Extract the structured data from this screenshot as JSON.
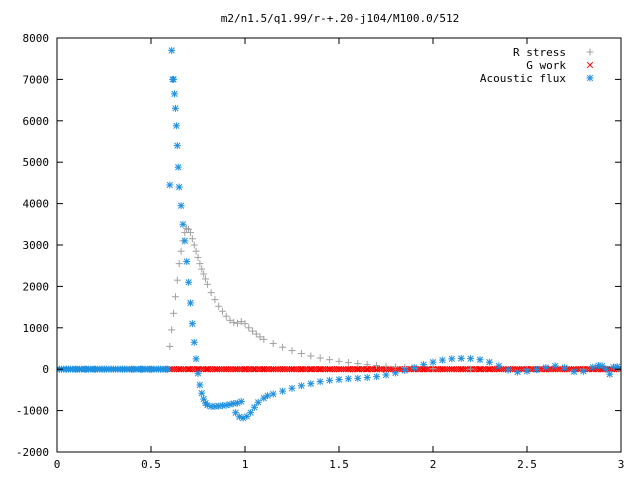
{
  "chart_data": {
    "type": "scatter",
    "title": "m2/n1.5/q1.99/r-+.20-j104/M100.0/512",
    "xlabel": "",
    "ylabel": "",
    "xlim": [
      0,
      3
    ],
    "ylim": [
      -2000,
      8000
    ],
    "x_ticks": [
      0,
      0.5,
      1,
      1.5,
      2,
      2.5,
      3
    ],
    "x_tick_labels": [
      "0",
      "0.5",
      "1",
      "1.5",
      "2",
      "2.5",
      "3"
    ],
    "y_ticks": [
      -2000,
      -1000,
      0,
      1000,
      2000,
      3000,
      4000,
      5000,
      6000,
      7000,
      8000
    ],
    "y_tick_labels": [
      "-2000",
      "-1000",
      "0",
      "1000",
      "2000",
      "3000",
      "4000",
      "5000",
      "6000",
      "7000",
      "8000"
    ],
    "grid": false,
    "legend_position": "top-right",
    "series": [
      {
        "name": "R stress",
        "marker": "plus",
        "color": "#a0a0a0",
        "points": [
          [
            0.6,
            550
          ],
          [
            0.61,
            950
          ],
          [
            0.62,
            1350
          ],
          [
            0.63,
            1750
          ],
          [
            0.64,
            2150
          ],
          [
            0.65,
            2550
          ],
          [
            0.66,
            2850
          ],
          [
            0.67,
            3100
          ],
          [
            0.68,
            3300
          ],
          [
            0.69,
            3400
          ],
          [
            0.7,
            3380
          ],
          [
            0.71,
            3300
          ],
          [
            0.72,
            3150
          ],
          [
            0.73,
            3000
          ],
          [
            0.74,
            2850
          ],
          [
            0.75,
            2700
          ],
          [
            0.76,
            2550
          ],
          [
            0.77,
            2420
          ],
          [
            0.78,
            2300
          ],
          [
            0.79,
            2180
          ],
          [
            0.8,
            2050
          ],
          [
            0.82,
            1850
          ],
          [
            0.84,
            1680
          ],
          [
            0.86,
            1520
          ],
          [
            0.88,
            1400
          ],
          [
            0.9,
            1280
          ],
          [
            0.92,
            1180
          ],
          [
            0.94,
            1130
          ],
          [
            0.96,
            1110
          ],
          [
            0.98,
            1150
          ],
          [
            1.0,
            1100
          ],
          [
            1.02,
            1000
          ],
          [
            1.04,
            920
          ],
          [
            1.06,
            850
          ],
          [
            1.08,
            780
          ],
          [
            1.1,
            720
          ],
          [
            1.15,
            620
          ],
          [
            1.2,
            530
          ],
          [
            1.25,
            450
          ],
          [
            1.3,
            380
          ],
          [
            1.35,
            320
          ],
          [
            1.4,
            270
          ],
          [
            1.45,
            230
          ],
          [
            1.5,
            190
          ],
          [
            1.55,
            160
          ],
          [
            1.6,
            135
          ],
          [
            1.65,
            110
          ],
          [
            1.7,
            90
          ],
          [
            1.75,
            70
          ],
          [
            1.8,
            55
          ],
          [
            1.85,
            40
          ],
          [
            1.9,
            25
          ],
          [
            2.0,
            10
          ],
          [
            2.2,
            0
          ],
          [
            2.5,
            0
          ],
          [
            2.8,
            0
          ],
          [
            3.0,
            0
          ]
        ]
      },
      {
        "name": "G work",
        "marker": "cross",
        "color": "#ff0000",
        "points": [
          [
            0.6,
            0
          ],
          [
            0.65,
            0
          ],
          [
            0.7,
            0
          ],
          [
            0.75,
            0
          ],
          [
            0.8,
            0
          ],
          [
            0.85,
            0
          ],
          [
            0.9,
            0
          ],
          [
            0.95,
            0
          ],
          [
            1.0,
            0
          ],
          [
            1.05,
            0
          ],
          [
            1.1,
            0
          ],
          [
            1.15,
            0
          ],
          [
            1.2,
            0
          ],
          [
            1.25,
            0
          ],
          [
            1.3,
            0
          ],
          [
            1.35,
            0
          ],
          [
            1.4,
            0
          ],
          [
            1.45,
            0
          ],
          [
            1.5,
            0
          ],
          [
            1.55,
            0
          ],
          [
            1.6,
            0
          ],
          [
            1.65,
            0
          ],
          [
            1.7,
            0
          ],
          [
            1.75,
            0
          ],
          [
            1.8,
            0
          ],
          [
            1.85,
            0
          ],
          [
            1.9,
            0
          ],
          [
            1.95,
            0
          ],
          [
            2.0,
            0
          ],
          [
            2.05,
            0
          ],
          [
            2.1,
            0
          ],
          [
            2.15,
            0
          ],
          [
            2.2,
            0
          ],
          [
            2.25,
            0
          ],
          [
            2.3,
            0
          ],
          [
            2.35,
            0
          ],
          [
            2.4,
            0
          ],
          [
            2.45,
            0
          ],
          [
            2.5,
            0
          ],
          [
            2.55,
            0
          ],
          [
            2.6,
            0
          ],
          [
            2.65,
            0
          ],
          [
            2.7,
            0
          ],
          [
            2.75,
            0
          ],
          [
            2.8,
            0
          ],
          [
            2.85,
            0
          ],
          [
            2.9,
            0
          ],
          [
            2.95,
            0
          ],
          [
            3.0,
            0
          ]
        ]
      },
      {
        "name": "Acoustic flux",
        "marker": "star",
        "color": "#1e90e0",
        "points": [
          [
            0.0,
            0
          ],
          [
            0.05,
            0
          ],
          [
            0.1,
            0
          ],
          [
            0.15,
            0
          ],
          [
            0.2,
            0
          ],
          [
            0.25,
            0
          ],
          [
            0.3,
            0
          ],
          [
            0.35,
            0
          ],
          [
            0.4,
            0
          ],
          [
            0.45,
            0
          ],
          [
            0.5,
            0
          ],
          [
            0.55,
            0
          ],
          [
            0.58,
            0
          ],
          [
            0.6,
            4450
          ],
          [
            0.61,
            7700
          ],
          [
            0.615,
            7000
          ],
          [
            0.62,
            7000
          ],
          [
            0.625,
            6650
          ],
          [
            0.63,
            6300
          ],
          [
            0.635,
            5880
          ],
          [
            0.64,
            5400
          ],
          [
            0.645,
            4880
          ],
          [
            0.65,
            4400
          ],
          [
            0.66,
            3950
          ],
          [
            0.67,
            3500
          ],
          [
            0.68,
            3100
          ],
          [
            0.69,
            2600
          ],
          [
            0.7,
            2100
          ],
          [
            0.71,
            1600
          ],
          [
            0.72,
            1100
          ],
          [
            0.73,
            650
          ],
          [
            0.74,
            250
          ],
          [
            0.75,
            -100
          ],
          [
            0.76,
            -380
          ],
          [
            0.77,
            -580
          ],
          [
            0.78,
            -720
          ],
          [
            0.79,
            -820
          ],
          [
            0.8,
            -870
          ],
          [
            0.82,
            -900
          ],
          [
            0.84,
            -900
          ],
          [
            0.86,
            -890
          ],
          [
            0.88,
            -880
          ],
          [
            0.9,
            -870
          ],
          [
            0.92,
            -850
          ],
          [
            0.94,
            -830
          ],
          [
            0.96,
            -820
          ],
          [
            0.98,
            -780
          ],
          [
            0.95,
            -1050
          ],
          [
            0.97,
            -1150
          ],
          [
            0.99,
            -1180
          ],
          [
            1.01,
            -1140
          ],
          [
            1.03,
            -1050
          ],
          [
            1.05,
            -920
          ],
          [
            1.07,
            -800
          ],
          [
            1.1,
            -700
          ],
          [
            1.12,
            -640
          ],
          [
            1.15,
            -600
          ],
          [
            1.2,
            -530
          ],
          [
            1.25,
            -460
          ],
          [
            1.3,
            -400
          ],
          [
            1.35,
            -350
          ],
          [
            1.4,
            -300
          ],
          [
            1.45,
            -270
          ],
          [
            1.5,
            -250
          ],
          [
            1.55,
            -230
          ],
          [
            1.6,
            -220
          ],
          [
            1.65,
            -200
          ],
          [
            1.7,
            -180
          ],
          [
            1.75,
            -140
          ],
          [
            1.8,
            -90
          ],
          [
            1.85,
            -30
          ],
          [
            1.9,
            40
          ],
          [
            1.95,
            110
          ],
          [
            2.0,
            170
          ],
          [
            2.05,
            220
          ],
          [
            2.1,
            250
          ],
          [
            2.15,
            260
          ],
          [
            2.2,
            255
          ],
          [
            2.25,
            230
          ],
          [
            2.3,
            170
          ],
          [
            2.35,
            80
          ],
          [
            2.4,
            -20
          ],
          [
            2.45,
            -70
          ],
          [
            2.5,
            -50
          ],
          [
            2.55,
            -10
          ],
          [
            2.6,
            40
          ],
          [
            2.65,
            80
          ],
          [
            2.7,
            40
          ],
          [
            2.75,
            -60
          ],
          [
            2.8,
            -50
          ],
          [
            2.85,
            50
          ],
          [
            2.88,
            90
          ],
          [
            2.9,
            80
          ],
          [
            2.92,
            0
          ],
          [
            2.94,
            -120
          ],
          [
            2.96,
            50
          ],
          [
            2.98,
            60
          ],
          [
            3.0,
            10
          ]
        ]
      }
    ]
  }
}
